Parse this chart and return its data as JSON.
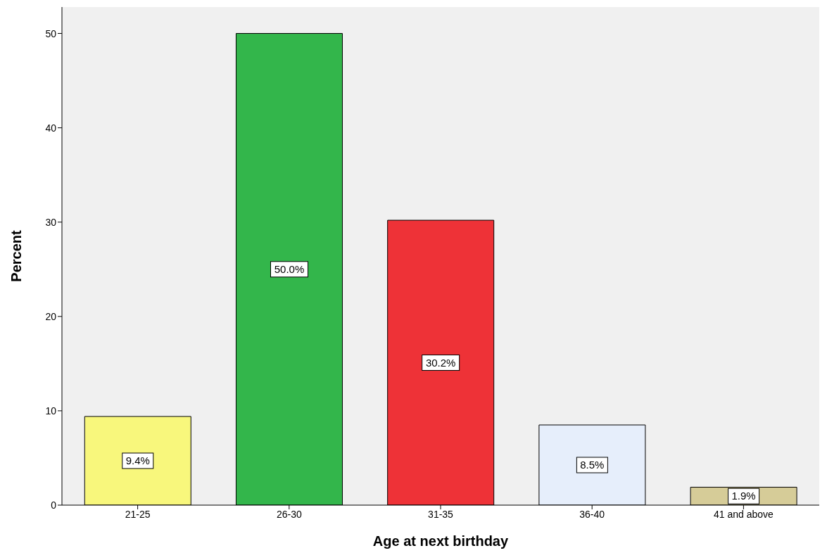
{
  "chart_data": {
    "type": "bar",
    "xlabel": "Age at next birthday",
    "ylabel": "Percent",
    "categories": [
      "21-25",
      "26-30",
      "31-35",
      "36-40",
      "41 and above"
    ],
    "values": [
      9.4,
      50.0,
      30.2,
      8.5,
      1.9
    ],
    "colors": [
      "#f8f77c",
      "#33b64b",
      "#ee3237",
      "#e6eefb",
      "#d6cc98"
    ],
    "value_labels": [
      "9.4%",
      "50.0%",
      "30.2%",
      "8.5%",
      "1.9%"
    ],
    "ylim": [
      0,
      52.8
    ],
    "yticks": [
      0,
      10,
      20,
      30,
      40,
      50
    ],
    "grid": false,
    "legend": false
  }
}
